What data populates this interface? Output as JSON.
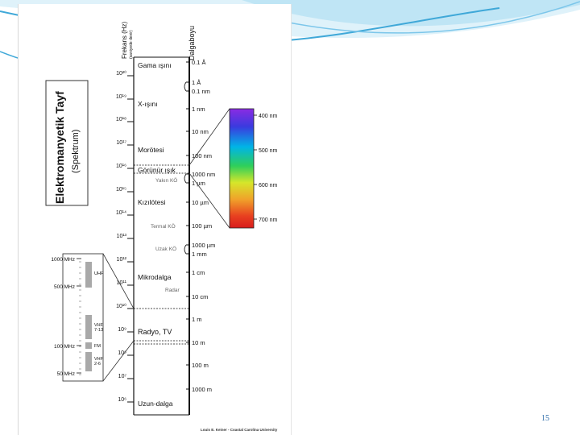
{
  "slide": {
    "page_number": "15",
    "accent_color": "#3fa8d8",
    "background_color": "#ffffff"
  },
  "figure": {
    "main_title": "Elektromanyetik Tayf",
    "sub_title": "(Spektrum)",
    "frequency_header": "Frekans (Hz)",
    "frequency_subheader": "(saniyede devir)",
    "wavelength_header": "Dalgaboyu",
    "frequency_ticks": [
      "10²⁰",
      "10¹⁹",
      "10¹⁸",
      "10¹⁷",
      "10¹⁶",
      "10¹⁵",
      "10¹⁴",
      "10¹³",
      "10¹²",
      "10¹¹",
      "10¹⁰",
      "10⁹",
      "10⁸",
      "10⁷",
      "10⁶",
      "10⁵"
    ],
    "wavelength_labels": [
      "0.1 Å",
      "1 Å",
      "0.1 nm",
      "1 nm",
      "10 nm",
      "100 nm",
      "1000 nm",
      "1 µm",
      "10 µm",
      "100 µm",
      "1000 µm",
      "1 mm",
      "1 cm",
      "10 cm",
      "1 m",
      "10 m",
      "100 m",
      "1000 m"
    ],
    "regions": [
      "Gama ışını",
      "X-ışını",
      "Morötesi",
      "Görünür ışık",
      "Yakın KÖ",
      "Kızılötesi",
      "Termal KÖ",
      "Uzak KÖ",
      "Mikrodalga",
      "Radar",
      "Radyo, TV",
      "Uzun-dalga"
    ],
    "visible_scale": [
      "400 nm",
      "500 nm",
      "600 nm",
      "700 nm"
    ],
    "visible_colors": [
      "#8a2be2",
      "#3a3adf",
      "#00b4e6",
      "#2fcf5a",
      "#d6e62a",
      "#f0a22a",
      "#e84020",
      "#d81c1c"
    ],
    "radio_scale": [
      "1000 MHz",
      "500 MHz",
      "100 MHz",
      "50 MHz"
    ],
    "radio_bands": [
      "UHF",
      "VHF 7-13",
      "FM",
      "VHF 2-6"
    ],
    "credit": "Louis E. Keiner - Coastal Carolina University"
  }
}
